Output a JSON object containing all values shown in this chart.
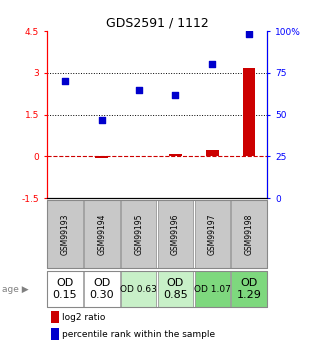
{
  "title": "GDS2591 / 1112",
  "samples": [
    "GSM99193",
    "GSM99194",
    "GSM99195",
    "GSM99196",
    "GSM99197",
    "GSM99198"
  ],
  "log2_ratio": [
    0.02,
    -0.05,
    0.01,
    0.08,
    0.22,
    3.18
  ],
  "percentile_rank": [
    70,
    47,
    65,
    62,
    80,
    98
  ],
  "left_ylim": [
    -1.5,
    4.5
  ],
  "right_ylim": [
    0,
    100
  ],
  "left_yticks": [
    -1.5,
    0,
    1.5,
    3,
    4.5
  ],
  "left_yticklabels": [
    "-1.5",
    "0",
    "1.5",
    "3",
    "4.5"
  ],
  "right_yticks": [
    0,
    25,
    50,
    75,
    100
  ],
  "right_yticklabels": [
    "0",
    "25",
    "50",
    "75",
    "100%"
  ],
  "hlines_dotted": [
    1.5,
    3.0
  ],
  "bar_color": "#cc0000",
  "dot_color": "#0000cc",
  "hline_color_zero": "#cc0000",
  "hline_color_dotted": "#000000",
  "row1_bg": "#c8c8c8",
  "row2_colors": [
    "#ffffff",
    "#ffffff",
    "#c8f0c8",
    "#c8f0c8",
    "#7ed87e",
    "#7ed87e"
  ],
  "row2_labels": [
    "OD\n0.15",
    "OD\n0.30",
    "OD 0.63",
    "OD\n0.85",
    "OD 1.07",
    "OD\n1.29"
  ],
  "row2_fontsizes": [
    8,
    8,
    6.5,
    8,
    6.5,
    8
  ],
  "legend_log2": "log2 ratio",
  "legend_pct": "percentile rank within the sample",
  "bar_width": 0.35
}
